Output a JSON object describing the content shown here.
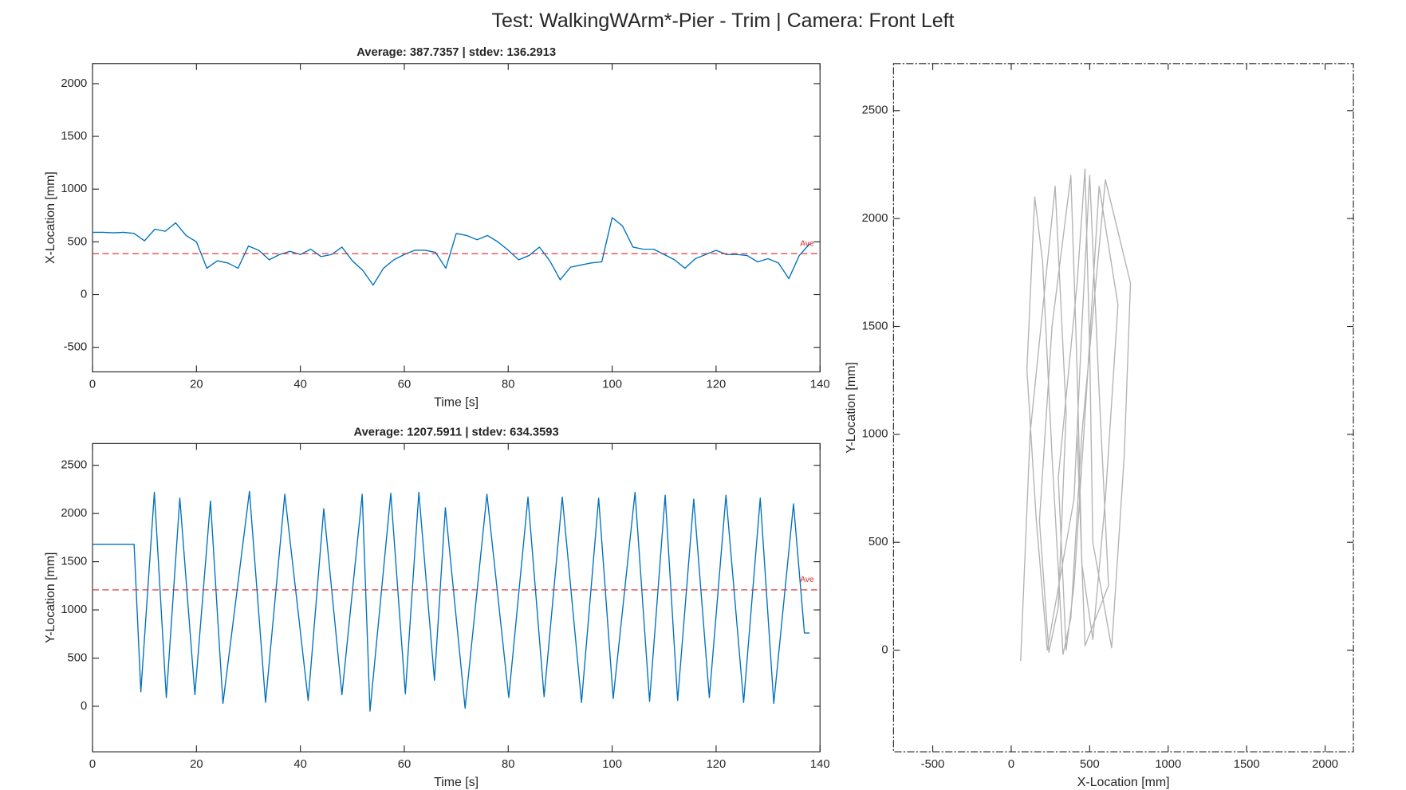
{
  "title": "Test: WalkingWArm*-Pier - Trim  |  Camera: Front Left",
  "chart_data": [
    {
      "type": "line",
      "title": "Average: 387.7357  |  stdev: 136.2913",
      "xlabel": "Time [s]",
      "ylabel": "X-Location [mm]",
      "xlim": [
        0,
        140
      ],
      "ylim": [
        -733,
        2190
      ],
      "xticks": [
        0,
        20,
        40,
        60,
        80,
        100,
        120,
        140
      ],
      "yticks": [
        -500,
        0,
        500,
        1000,
        1500,
        2000
      ],
      "series": [
        {
          "color": "#0072bd",
          "x": [
            0,
            2,
            4,
            6,
            8,
            10,
            12,
            14,
            16,
            18,
            20,
            22,
            24,
            26,
            28,
            30,
            32,
            34,
            36,
            38,
            40,
            42,
            44,
            46,
            48,
            50,
            52,
            54,
            56,
            58,
            60,
            62,
            64,
            66,
            68,
            70,
            72,
            74,
            76,
            78,
            80,
            82,
            84,
            86,
            88,
            90,
            92,
            94,
            96,
            98,
            100,
            102,
            104,
            106,
            108,
            110,
            112,
            114,
            116,
            118,
            120,
            122,
            124,
            126,
            128,
            130,
            132,
            134,
            136,
            138
          ],
          "values": [
            590,
            590,
            585,
            590,
            580,
            510,
            620,
            600,
            680,
            560,
            500,
            250,
            320,
            300,
            250,
            460,
            420,
            330,
            380,
            410,
            380,
            430,
            360,
            380,
            450,
            320,
            230,
            90,
            250,
            330,
            380,
            420,
            420,
            400,
            250,
            580,
            560,
            520,
            560,
            500,
            420,
            330,
            370,
            450,
            320,
            140,
            260,
            280,
            300,
            310,
            730,
            650,
            450,
            430,
            430,
            380,
            330,
            250,
            340,
            380,
            420,
            380,
            380,
            370,
            310,
            340,
            300,
            150,
            370,
            480
          ]
        }
      ],
      "hlines": [
        {
          "value": 387.7357,
          "label": "Ave",
          "color": "#d62728"
        }
      ]
    },
    {
      "type": "line",
      "title": "Average: 1207.5911  |  stdev: 634.3593",
      "xlabel": "Time [s]",
      "ylabel": "Y-Location [mm]",
      "xlim": [
        0,
        140
      ],
      "ylim": [
        -472,
        2726
      ],
      "xticks": [
        0,
        20,
        40,
        60,
        80,
        100,
        120,
        140
      ],
      "yticks": [
        0,
        500,
        1000,
        1500,
        2000,
        2500
      ],
      "series": [
        {
          "color": "#0072bd",
          "x": [
            0,
            8,
            9.3,
            11.9,
            14.2,
            16.8,
            19.7,
            22.7,
            25.1,
            30.2,
            33.3,
            37.0,
            41.5,
            44.5,
            48.0,
            51.9,
            53.4,
            57.4,
            60.2,
            62.8,
            65.8,
            67.9,
            71.7,
            75.9,
            80.1,
            83.8,
            86.9,
            90.4,
            94.1,
            97.4,
            100.2,
            104.4,
            107.2,
            110.2,
            112.6,
            115.7,
            118.7,
            121.9,
            125.3,
            128.5,
            131.1,
            134.9,
            137,
            138
          ],
          "values": [
            1680,
            1680,
            150,
            2220,
            90,
            2160,
            120,
            2130,
            30,
            2230,
            40,
            2200,
            60,
            2050,
            120,
            2200,
            -50,
            2210,
            130,
            2220,
            270,
            2060,
            -20,
            2200,
            90,
            2170,
            100,
            2170,
            40,
            2160,
            80,
            2220,
            50,
            2190,
            60,
            2150,
            90,
            2190,
            40,
            2160,
            30,
            2100,
            760,
            760
          ]
        }
      ],
      "hlines": [
        {
          "value": 1207.5911,
          "label": "Ave",
          "color": "#d62728"
        }
      ]
    },
    {
      "type": "line",
      "xlabel": "X-Location [mm]",
      "ylabel": "Y-Location [mm]",
      "xlim": [
        -750,
        2180
      ],
      "ylim": [
        -471,
        2718
      ],
      "xticks": [
        -500,
        0,
        500,
        1000,
        1500,
        2000
      ],
      "yticks": [
        0,
        500,
        1000,
        1500,
        2000,
        2500
      ],
      "series": [
        {
          "color": "#808080",
          "x": [
            60,
            120,
            280,
            350,
            300,
            240,
            180,
            260,
            380,
            420,
            450,
            520,
            600,
            680,
            560,
            480,
            400,
            350,
            300,
            420,
            470,
            500,
            520,
            640,
            720,
            760,
            600,
            450,
            380,
            330,
            260,
            200,
            150,
            100,
            160,
            230,
            400,
            450,
            500,
            560,
            620,
            470,
            420
          ],
          "values": [
            -50,
            1000,
            2150,
            1100,
            200,
            -10,
            600,
            1500,
            2200,
            1300,
            400,
            50,
            700,
            1600,
            2150,
            1200,
            300,
            0,
            800,
            1700,
            2230,
            1400,
            500,
            10,
            900,
            1700,
            2180,
            1000,
            150,
            -20,
            900,
            1800,
            2100,
            1300,
            600,
            0,
            700,
            1500,
            2200,
            1200,
            300,
            20,
            1000
          ]
        }
      ]
    }
  ]
}
